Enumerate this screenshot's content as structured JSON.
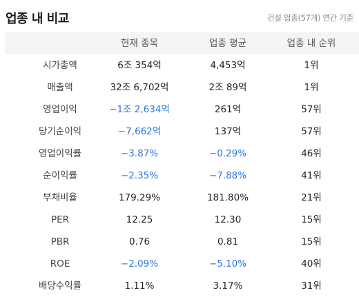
{
  "header": {
    "title": "업종 내 비교",
    "subtitle": "건설 업종(57개) 연간 기준"
  },
  "columns": [
    "",
    "현재 종목",
    "업종 평균",
    "업종 내 순위"
  ],
  "rows": [
    {
      "label": "시가총액",
      "current": "6조 354억",
      "average": "4,453억",
      "rank": "1위",
      "current_neg": false,
      "average_neg": false
    },
    {
      "label": "매출액",
      "current": "32조 6,702억",
      "average": "2조 89억",
      "rank": "1위",
      "current_neg": false,
      "average_neg": false
    },
    {
      "label": "영업이익",
      "current": "−1조 2,634억",
      "average": "261억",
      "rank": "57위",
      "current_neg": true,
      "average_neg": false
    },
    {
      "label": "당기순이익",
      "current": "−7,662억",
      "average": "137억",
      "rank": "57위",
      "current_neg": true,
      "average_neg": false
    },
    {
      "label": "영업이익률",
      "current": "−3.87%",
      "average": "−0.29%",
      "rank": "46위",
      "current_neg": true,
      "average_neg": true
    },
    {
      "label": "순이익률",
      "current": "−2.35%",
      "average": "−7.88%",
      "rank": "41위",
      "current_neg": true,
      "average_neg": true
    },
    {
      "label": "부채비율",
      "current": "179.29%",
      "average": "181.80%",
      "rank": "21위",
      "current_neg": false,
      "average_neg": false
    },
    {
      "label": "PER",
      "current": "12.25",
      "average": "12.30",
      "rank": "15위",
      "current_neg": false,
      "average_neg": false
    },
    {
      "label": "PBR",
      "current": "0.76",
      "average": "0.81",
      "rank": "15위",
      "current_neg": false,
      "average_neg": false
    },
    {
      "label": "ROE",
      "current": "−2.09%",
      "average": "−5.10%",
      "rank": "40위",
      "current_neg": true,
      "average_neg": true
    },
    {
      "label": "배당수익률",
      "current": "1.11%",
      "average": "3.17%",
      "rank": "31위",
      "current_neg": false,
      "average_neg": false
    }
  ],
  "colors": {
    "negative": "#2f74e0",
    "header_bg": "#f3f4f6"
  }
}
